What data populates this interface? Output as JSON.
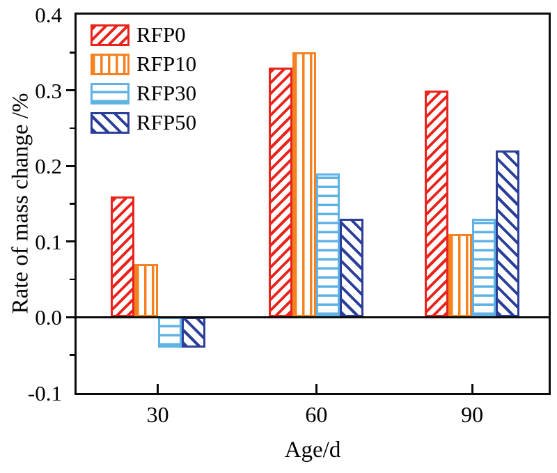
{
  "chart_data": {
    "type": "bar",
    "title": "",
    "xlabel": "Age/d",
    "ylabel": "Rate of mass change /%",
    "categories": [
      "30",
      "60",
      "90"
    ],
    "series": [
      {
        "name": "RFP0",
        "color": "#e8241d",
        "hatch": "diagonal-forward",
        "values": [
          0.16,
          0.33,
          0.3
        ]
      },
      {
        "name": "RFP10",
        "color": "#f58220",
        "hatch": "vertical",
        "values": [
          0.07,
          0.35,
          0.11
        ]
      },
      {
        "name": "RFP30",
        "color": "#5eb3e4",
        "hatch": "horizontal",
        "values": [
          -0.04,
          0.19,
          0.13
        ]
      },
      {
        "name": "RFP50",
        "color": "#2b3e99",
        "hatch": "diagonal-backward",
        "values": [
          -0.04,
          0.13,
          0.22
        ]
      }
    ],
    "ylim": [
      -0.1,
      0.4
    ],
    "yticks": [
      {
        "label": "0.4",
        "value": 0.4
      },
      {
        "label": "0.3",
        "value": 0.3
      },
      {
        "label": "0.2",
        "value": 0.2
      },
      {
        "label": "0.1",
        "value": 0.1
      },
      {
        "label": "0.0",
        "value": 0.0
      },
      {
        "label": "-0.1",
        "value": -0.1
      }
    ],
    "minor_yticks": [
      0.35,
      0.25,
      0.15,
      0.05,
      -0.05
    ],
    "axis_color": "#0a0a0a",
    "grid": false,
    "legend_position": "top-left"
  }
}
